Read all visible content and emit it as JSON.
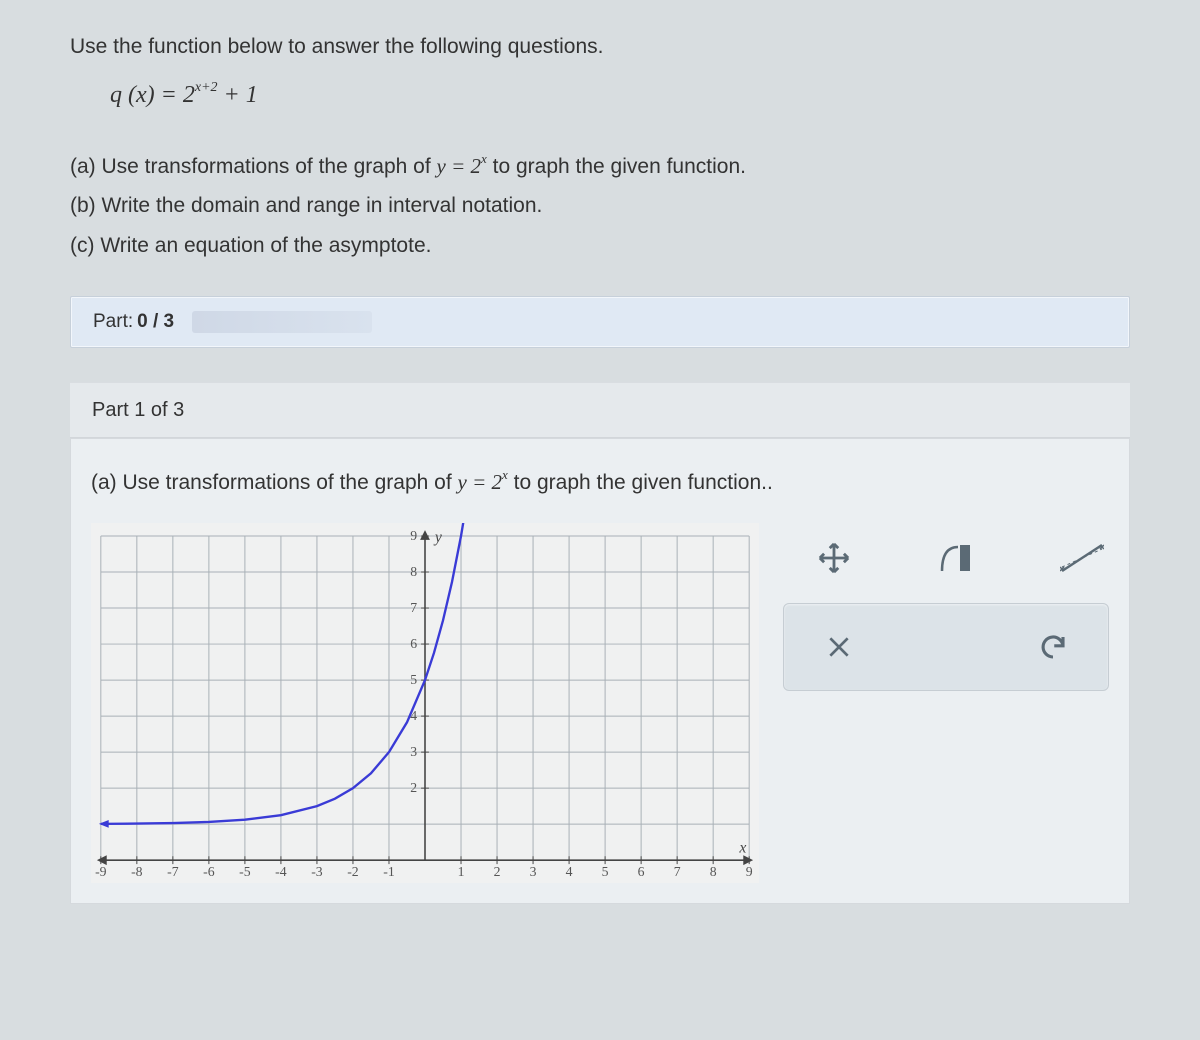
{
  "intro": "Use the function below to answer the following questions.",
  "formula_html": "q (x) = 2<sup>x+2</sup> + 1",
  "qa": "(a) Use transformations of the graph of ",
  "qa_math": "y = 2<sup>x</sup>",
  "qa_tail": " to graph the given function.",
  "qb": "(b) Write the domain and range in interval notation.",
  "qc": "(c) Write an equation of the asymptote.",
  "partbar_label": "Part: ",
  "partbar_num": "0 / 3",
  "subbar": "Part 1 of 3",
  "panel_qa": "(a) Use transformations of the graph of ",
  "panel_qa_tail": " to graph the given function..",
  "graph": {
    "xlim": [
      -9,
      9
    ],
    "ylim": [
      0,
      9
    ],
    "xticks": [
      -9,
      -8,
      -7,
      -6,
      -5,
      -4,
      -3,
      -2,
      -1,
      1,
      2,
      3,
      4,
      5,
      6,
      7,
      8,
      9
    ],
    "yticks": [
      2,
      3,
      4,
      5,
      6,
      7,
      8,
      9
    ],
    "xlabel": "x",
    "ylabel": "y",
    "grid_color": "#a8b0b6",
    "axis_color": "#444",
    "curve_color": "#3a3bd6",
    "background": "#f0f1f1",
    "curve_points": [
      [
        -9,
        1.008
      ],
      [
        -8,
        1.016
      ],
      [
        -7,
        1.031
      ],
      [
        -6,
        1.063
      ],
      [
        -5,
        1.125
      ],
      [
        -4,
        1.25
      ],
      [
        -3,
        1.5
      ],
      [
        -2.5,
        1.707
      ],
      [
        -2,
        2
      ],
      [
        -1.5,
        2.414
      ],
      [
        -1,
        3
      ],
      [
        -0.5,
        3.828
      ],
      [
        0,
        5
      ],
      [
        0.25,
        5.757
      ],
      [
        0.5,
        6.657
      ],
      [
        0.75,
        7.727
      ],
      [
        1,
        9
      ],
      [
        1.1,
        9.6
      ]
    ]
  },
  "tools": {
    "move": "✥",
    "curve": "◢▮",
    "line": "▱",
    "close": "✕",
    "undo": "↶"
  }
}
